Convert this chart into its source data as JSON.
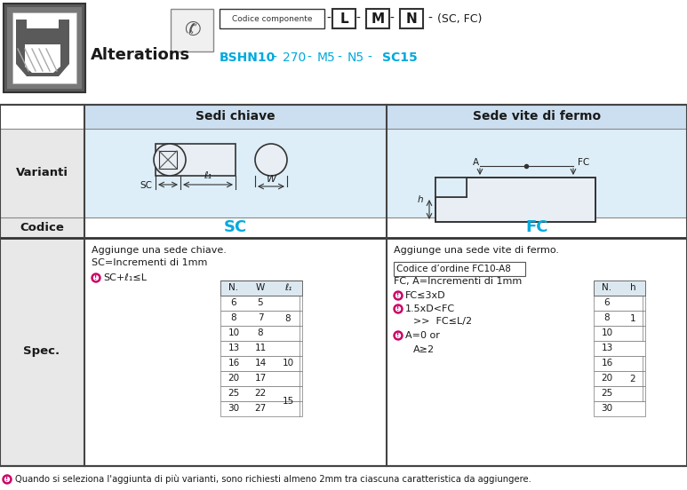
{
  "bg_color": "#ffffff",
  "light_blue_bg": "#ddeef8",
  "table_header_bg": "#ccdff0",
  "cyan_text": "#00aadd",
  "dark_text": "#1a1a1a",
  "pink_icon": "#cc0066",
  "footer_text": "Quando si seleziona l'aggiunta di più varianti, sono richiesti almeno 2mm tra ciascuna caratteristica da aggiungere.",
  "col1_label": "Sedi chiave",
  "col2_label": "Sede vite di fermo",
  "row_varianti": "Varianti",
  "row_codice": "Codice",
  "row_spec": "Spec.",
  "sc_code": "SC",
  "fc_code": "FC",
  "spec_left_line1": "Aggiunge una sede chiave.",
  "spec_left_line2": "SC=Incrementi di 1mm",
  "spec_left_alert": "SC+ℓ₁≤L",
  "spec_right_line1": "Aggiunge una sede vite di fermo.",
  "spec_right_order": "Codice d’ordine FC10-A8",
  "spec_right_line2": "FC, A=Incrementi di 1mm",
  "spec_alert1": "FC≤3xD",
  "spec_alert2": "1.5xD<FC",
  "spec_sub2": ">>  FC≤L/2",
  "spec_alert3": "A=0 or",
  "spec_sub3": "A≥2",
  "tbl_left_headers": [
    "N.",
    "W",
    "ℓ₁"
  ],
  "tbl_left_rows": [
    [
      "6",
      "5",
      ""
    ],
    [
      "8",
      "7",
      ""
    ],
    [
      "10",
      "8",
      ""
    ],
    [
      "13",
      "11",
      ""
    ],
    [
      "16",
      "14",
      ""
    ],
    [
      "20",
      "17",
      ""
    ],
    [
      "25",
      "22",
      ""
    ],
    [
      "30",
      "27",
      ""
    ]
  ],
  "tbl_left_merged": [
    [
      0,
      2,
      "8"
    ],
    [
      3,
      5,
      "10"
    ],
    [
      6,
      7,
      "15"
    ]
  ],
  "tbl_right_headers": [
    "N.",
    "h"
  ],
  "tbl_right_rows": [
    [
      "6",
      ""
    ],
    [
      "8",
      ""
    ],
    [
      "10",
      ""
    ],
    [
      "13",
      ""
    ],
    [
      "16",
      ""
    ],
    [
      "20",
      ""
    ],
    [
      "25",
      ""
    ],
    [
      "30",
      ""
    ]
  ],
  "tbl_right_merged": [
    [
      0,
      2,
      "1"
    ],
    [
      4,
      6,
      "2"
    ]
  ]
}
